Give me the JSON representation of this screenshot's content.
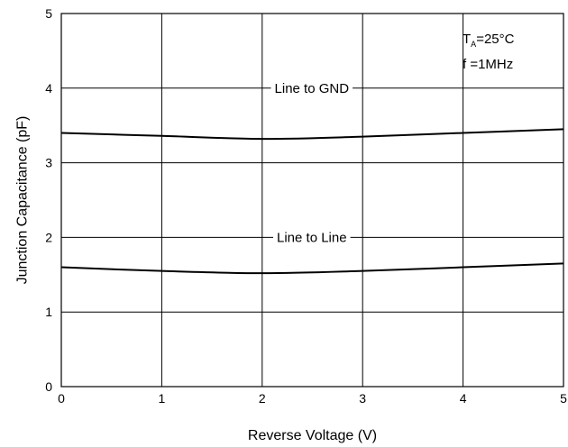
{
  "chart_data": {
    "type": "line",
    "xlabel": "Reverse Voltage (V)",
    "ylabel": "Junction Capacitance (pF)",
    "xlim": [
      0,
      5
    ],
    "ylim": [
      0,
      5
    ],
    "x_ticks": [
      "0",
      "1",
      "2",
      "3",
      "4",
      "5"
    ],
    "y_ticks": [
      "0",
      "1",
      "2",
      "3",
      "4",
      "5"
    ],
    "grid": true,
    "annotation": {
      "ta_symbol": "T",
      "ta_subscript": "A",
      "ta_value": "=25°C",
      "freq": "f =1MHz"
    },
    "series": [
      {
        "name": "Line to GND",
        "x": [
          0,
          1,
          2,
          3,
          4,
          5
        ],
        "y": [
          3.4,
          3.36,
          3.32,
          3.35,
          3.4,
          3.45
        ],
        "label_at": [
          2.0,
          4.0
        ]
      },
      {
        "name": "Line to Line",
        "x": [
          0,
          1,
          2,
          3,
          4,
          5
        ],
        "y": [
          1.6,
          1.55,
          1.52,
          1.55,
          1.6,
          1.65
        ],
        "label_at": [
          2.0,
          2.0
        ]
      }
    ]
  }
}
